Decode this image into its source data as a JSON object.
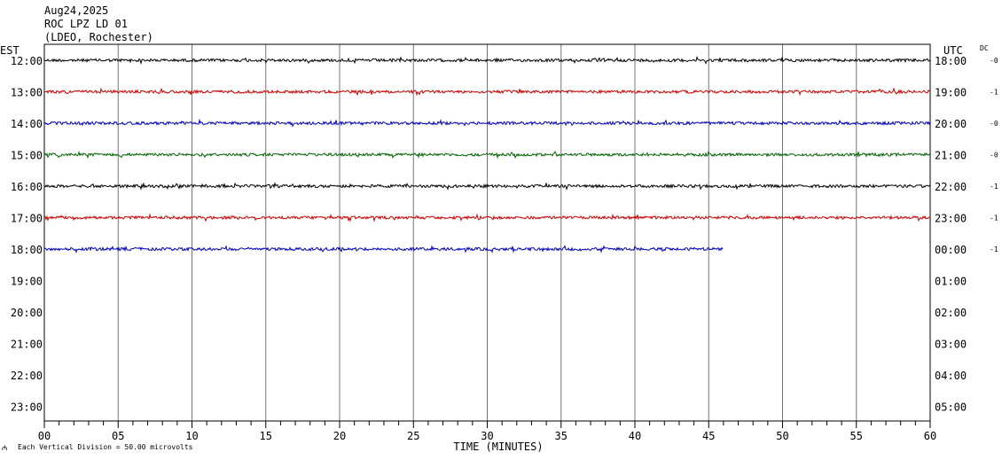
{
  "header": {
    "date": "Aug24,2025",
    "station": "ROC LPZ LD 01",
    "network": "(LDEO, Rochester)"
  },
  "chart_data": {
    "type": "line",
    "title": "Aug24,2025",
    "xlabel": "TIME (MINUTES)",
    "left_axis_title": "EST",
    "right_axis_title": "UTC",
    "dc_title": "DC",
    "xlim": [
      0,
      60
    ],
    "x_ticks": [
      "00",
      "05",
      "10",
      "15",
      "20",
      "25",
      "30",
      "35",
      "40",
      "45",
      "50",
      "55",
      "60"
    ],
    "grid": "vertical",
    "scale_note": "Each Vertical Division =   50.00 microvolts",
    "rows": [
      {
        "est": "12:00",
        "utc": "18:00",
        "dc": "-0",
        "color": "#000000",
        "end_minute": 60
      },
      {
        "est": "13:00",
        "utc": "19:00",
        "dc": "-1",
        "color": "#cc0000",
        "end_minute": 60
      },
      {
        "est": "14:00",
        "utc": "20:00",
        "dc": "-0",
        "color": "#0000bb",
        "end_minute": 60
      },
      {
        "est": "15:00",
        "utc": "21:00",
        "dc": "-0",
        "color": "#006400",
        "end_minute": 60
      },
      {
        "est": "16:00",
        "utc": "22:00",
        "dc": "-1",
        "color": "#000000",
        "end_minute": 60
      },
      {
        "est": "17:00",
        "utc": "23:00",
        "dc": "-1",
        "color": "#cc0000",
        "end_minute": 60
      },
      {
        "est": "18:00",
        "utc": "00:00",
        "dc": "-1",
        "color": "#0000bb",
        "end_minute": 46
      },
      {
        "est": "19:00",
        "utc": "01:00",
        "dc": "",
        "color": "#000000",
        "end_minute": 0
      },
      {
        "est": "20:00",
        "utc": "02:00",
        "dc": "",
        "color": "#cc0000",
        "end_minute": 0
      },
      {
        "est": "21:00",
        "utc": "03:00",
        "dc": "",
        "color": "#0000bb",
        "end_minute": 0
      },
      {
        "est": "22:00",
        "utc": "04:00",
        "dc": "",
        "color": "#006400",
        "end_minute": 0
      },
      {
        "est": "23:00",
        "utc": "05:00",
        "dc": "",
        "color": "#000000",
        "end_minute": 0
      }
    ]
  }
}
